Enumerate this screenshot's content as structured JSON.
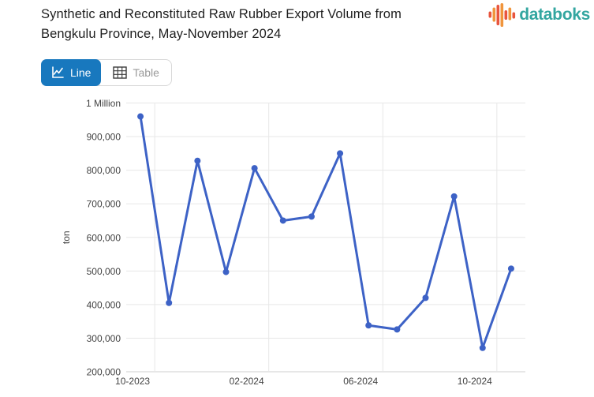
{
  "header": {
    "title_line1": "Synthetic and Reconstituted Raw Rubber Export Volume from",
    "title_line2": "Bengkulu Province, May-November 2024",
    "logo_text": "databoks"
  },
  "toolbar": {
    "line_label": "Line",
    "table_label": "Table"
  },
  "colors": {
    "active_button_blue": "#1878BE",
    "line_blue": "#3D62C6",
    "logo_teal": "#33A6A0",
    "logo_orange": "#F0953C",
    "logo_red": "#E8553E",
    "grid_gray": "#E7E7E7"
  },
  "chart_data": {
    "type": "line",
    "title": "Synthetic and Reconstituted Raw Rubber Export Volume from Bengkulu Province, May-November 2024",
    "ylabel": "ton",
    "x": [
      "10-2023",
      "11-2023",
      "12-2023",
      "01-2024",
      "02-2024",
      "03-2024",
      "04-2024",
      "05-2024",
      "06-2024",
      "07-2024",
      "08-2024",
      "09-2024",
      "10-2024",
      "11-2024"
    ],
    "values": [
      960000,
      405000,
      828000,
      497000,
      806000,
      650000,
      662000,
      850000,
      338000,
      326000,
      420000,
      722000,
      271000,
      507000
    ],
    "x_tick_indices": [
      0,
      4,
      8,
      12
    ],
    "x_tick_labels": [
      "10-2023",
      "02-2024",
      "06-2024",
      "10-2024"
    ],
    "y_ticks": [
      200000,
      300000,
      400000,
      500000,
      600000,
      700000,
      800000,
      900000,
      1000000
    ],
    "y_tick_labels": [
      "200,000",
      "300,000",
      "400,000",
      "500,000",
      "600,000",
      "700,000",
      "800,000",
      "900,000",
      "1 Million"
    ],
    "ylim": [
      200000,
      1000000
    ],
    "grid": true,
    "legend": "none",
    "line_color": "#3D62C6"
  }
}
